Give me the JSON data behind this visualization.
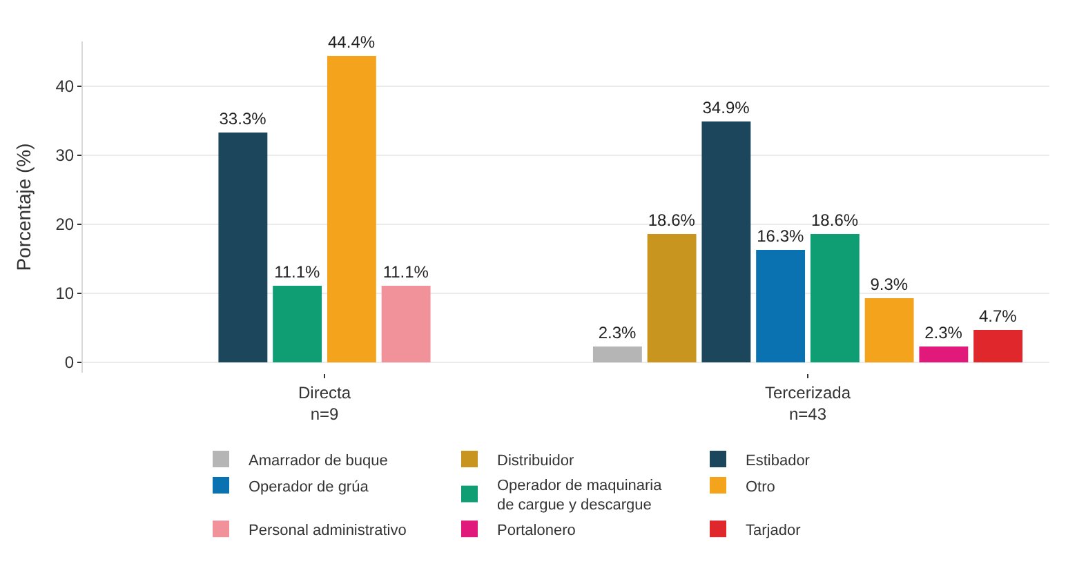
{
  "chart_data": {
    "type": "bar",
    "ylabel": "Porcentaje (%)",
    "categories": [
      "Directa\nn=9",
      "Tercerizada\nn=43"
    ],
    "series": [
      {
        "name": "Amarrador de buque",
        "color": "#b5b5b5",
        "values": [
          null,
          2.3
        ],
        "value_labels": [
          null,
          "2.3%"
        ]
      },
      {
        "name": "Distribuidor",
        "color": "#c8961e",
        "values": [
          null,
          18.6
        ],
        "value_labels": [
          null,
          "18.6%"
        ]
      },
      {
        "name": "Estibador",
        "color": "#1b465b",
        "values": [
          33.3,
          34.9
        ],
        "value_labels": [
          "33.3%",
          "34.9%"
        ]
      },
      {
        "name": "Operador de grúa",
        "color": "#0a72b0",
        "values": [
          null,
          16.3
        ],
        "value_labels": [
          null,
          "16.3%"
        ]
      },
      {
        "name": "Operador de maquinaria\nde cargue y descargue",
        "color": "#0f9e74",
        "values": [
          11.1,
          18.6
        ],
        "value_labels": [
          "11.1%",
          "18.6%"
        ]
      },
      {
        "name": "Otro",
        "color": "#f3a41c",
        "values": [
          44.4,
          9.3
        ],
        "value_labels": [
          "44.4%",
          "9.3%"
        ]
      },
      {
        "name": "Personal administrativo",
        "color": "#f1929b",
        "values": [
          11.1,
          null
        ],
        "value_labels": [
          "11.1%",
          null
        ]
      },
      {
        "name": "Portalonero",
        "color": "#e0197a",
        "values": [
          null,
          2.3
        ],
        "value_labels": [
          null,
          "2.3%"
        ]
      },
      {
        "name": "Tarjador",
        "color": "#e0282c",
        "values": [
          null,
          4.7
        ],
        "value_labels": [
          null,
          "4.7%"
        ]
      }
    ],
    "ylim": [
      -1.5,
      46.5
    ],
    "yticks": [
      0,
      10,
      20,
      30,
      40
    ],
    "grid": "y",
    "legend": "bottom"
  }
}
